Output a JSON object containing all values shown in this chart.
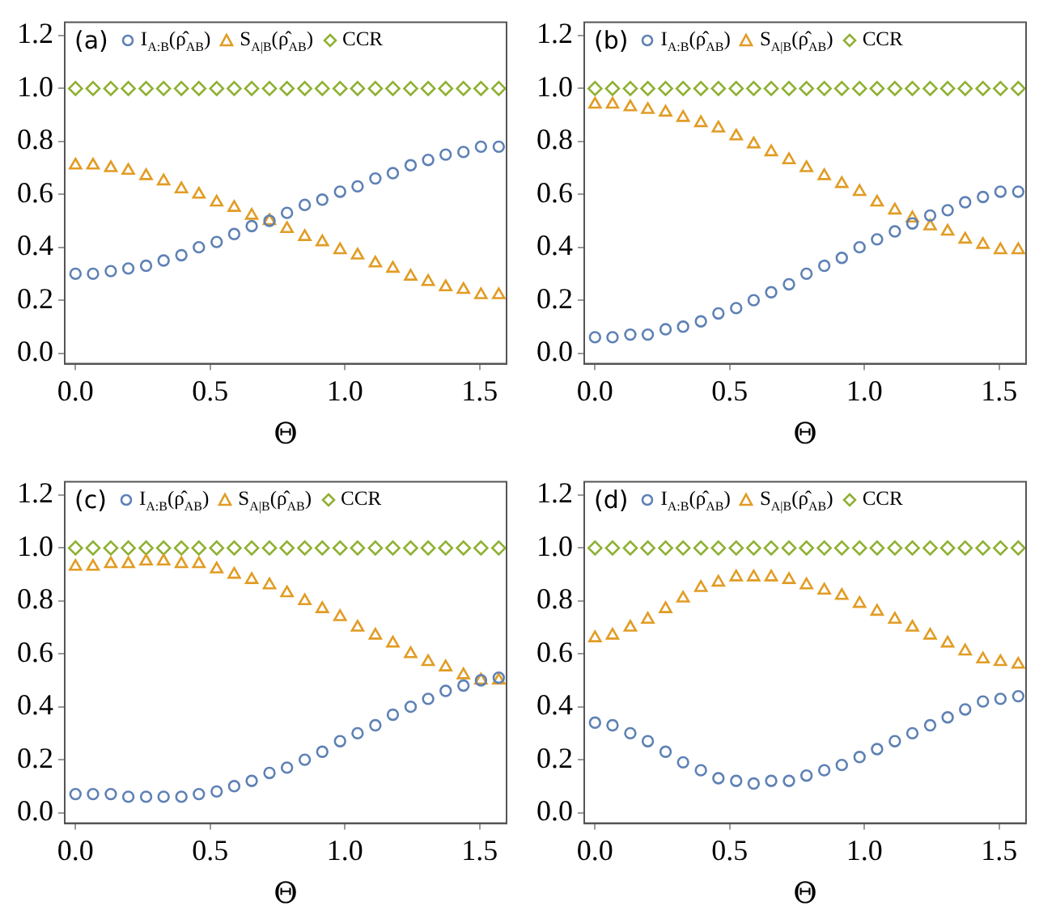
{
  "chart_data": [
    {
      "type": "scatter",
      "annotations": [
        "(a)"
      ],
      "xlabel": "Θ",
      "legend": "top",
      "grid": false,
      "x": [
        0,
        0.065,
        0.131,
        0.196,
        0.262,
        0.327,
        0.393,
        0.458,
        0.524,
        0.589,
        0.654,
        0.72,
        0.785,
        0.851,
        0.916,
        0.982,
        1.047,
        1.113,
        1.178,
        1.244,
        1.309,
        1.374,
        1.44,
        1.505,
        1.571
      ],
      "xlim": [
        -0.04,
        1.6
      ],
      "xticks": [
        {
          "value": 0,
          "label": "0.0"
        },
        {
          "value": 0.5,
          "label": "0.5"
        },
        {
          "value": 1,
          "label": "1.0"
        },
        {
          "value": 1.5,
          "label": "1.5"
        }
      ],
      "ylim": [
        -0.04,
        1.25
      ],
      "yticks": [
        {
          "value": 0,
          "label": "0.0"
        },
        {
          "value": 0.2,
          "label": "0.2"
        },
        {
          "value": 0.4,
          "label": "0.4"
        },
        {
          "value": 0.6,
          "label": "0.6"
        },
        {
          "value": 0.8,
          "label": "0.8"
        },
        {
          "value": 1,
          "label": "1.0"
        },
        {
          "value": 1.2,
          "label": "1.2"
        }
      ],
      "series": [
        {
          "name": "I$_{A:B}$(ρ̂$_{AB}$)",
          "color": "#5e81b5",
          "marker": "circle",
          "values": [
            0.3,
            0.3,
            0.31,
            0.32,
            0.33,
            0.35,
            0.37,
            0.4,
            0.42,
            0.45,
            0.48,
            0.5,
            0.53,
            0.56,
            0.58,
            0.61,
            0.63,
            0.66,
            0.68,
            0.71,
            0.73,
            0.75,
            0.76,
            0.78,
            0.78
          ]
        },
        {
          "name": "S$_{A|B}$(ρ̂$_{AB}$)",
          "color": "#e19c24",
          "marker": "triangle",
          "values": [
            0.71,
            0.71,
            0.7,
            0.69,
            0.67,
            0.65,
            0.62,
            0.6,
            0.57,
            0.55,
            0.52,
            0.5,
            0.47,
            0.44,
            0.42,
            0.39,
            0.37,
            0.34,
            0.32,
            0.29,
            0.27,
            0.25,
            0.24,
            0.22,
            0.22
          ]
        },
        {
          "name": "CCR",
          "color": "#8fb032",
          "marker": "diamond",
          "values": [
            1,
            1,
            1,
            1,
            1,
            1,
            1,
            1,
            1,
            1,
            1,
            1,
            1,
            1,
            1,
            1,
            1,
            1,
            1,
            1,
            1,
            1,
            1,
            1,
            1
          ]
        }
      ]
    },
    {
      "type": "scatter",
      "annotations": [
        "(b)"
      ],
      "xlabel": "Θ",
      "legend": "top",
      "grid": false,
      "x": [
        0,
        0.065,
        0.131,
        0.196,
        0.262,
        0.327,
        0.393,
        0.458,
        0.524,
        0.589,
        0.654,
        0.72,
        0.785,
        0.851,
        0.916,
        0.982,
        1.047,
        1.113,
        1.178,
        1.244,
        1.309,
        1.374,
        1.44,
        1.505,
        1.571
      ],
      "xlim": [
        -0.04,
        1.6
      ],
      "xticks": [
        {
          "value": 0,
          "label": "0.0"
        },
        {
          "value": 0.5,
          "label": "0.5"
        },
        {
          "value": 1,
          "label": "1.0"
        },
        {
          "value": 1.5,
          "label": "1.5"
        }
      ],
      "ylim": [
        -0.04,
        1.25
      ],
      "yticks": [
        {
          "value": 0,
          "label": "0.0"
        },
        {
          "value": 0.2,
          "label": "0.2"
        },
        {
          "value": 0.4,
          "label": "0.4"
        },
        {
          "value": 0.6,
          "label": "0.6"
        },
        {
          "value": 0.8,
          "label": "0.8"
        },
        {
          "value": 1,
          "label": "1.0"
        },
        {
          "value": 1.2,
          "label": "1.2"
        }
      ],
      "series": [
        {
          "name": "I$_{A:B}$(ρ̂$_{AB}$)",
          "color": "#5e81b5",
          "marker": "circle",
          "values": [
            0.06,
            0.06,
            0.07,
            0.07,
            0.09,
            0.1,
            0.12,
            0.15,
            0.17,
            0.2,
            0.23,
            0.26,
            0.3,
            0.33,
            0.36,
            0.4,
            0.43,
            0.46,
            0.49,
            0.52,
            0.54,
            0.57,
            0.59,
            0.61,
            0.61
          ]
        },
        {
          "name": "S$_{A|B}$(ρ̂$_{AB}$)",
          "color": "#e19c24",
          "marker": "triangle",
          "values": [
            0.94,
            0.94,
            0.93,
            0.92,
            0.91,
            0.89,
            0.87,
            0.85,
            0.82,
            0.79,
            0.76,
            0.73,
            0.7,
            0.67,
            0.64,
            0.61,
            0.57,
            0.54,
            0.51,
            0.48,
            0.46,
            0.43,
            0.41,
            0.39,
            0.39
          ]
        },
        {
          "name": "CCR",
          "color": "#8fb032",
          "marker": "diamond",
          "values": [
            1,
            1,
            1,
            1,
            1,
            1,
            1,
            1,
            1,
            1,
            1,
            1,
            1,
            1,
            1,
            1,
            1,
            1,
            1,
            1,
            1,
            1,
            1,
            1,
            1
          ]
        }
      ]
    },
    {
      "type": "scatter",
      "annotations": [
        "(c)"
      ],
      "xlabel": "Θ",
      "legend": "top",
      "grid": false,
      "x": [
        0,
        0.065,
        0.131,
        0.196,
        0.262,
        0.327,
        0.393,
        0.458,
        0.524,
        0.589,
        0.654,
        0.72,
        0.785,
        0.851,
        0.916,
        0.982,
        1.047,
        1.113,
        1.178,
        1.244,
        1.309,
        1.374,
        1.44,
        1.505,
        1.571
      ],
      "xlim": [
        -0.04,
        1.6
      ],
      "xticks": [
        {
          "value": 0,
          "label": "0.0"
        },
        {
          "value": 0.5,
          "label": "0.5"
        },
        {
          "value": 1,
          "label": "1.0"
        },
        {
          "value": 1.5,
          "label": "1.5"
        }
      ],
      "ylim": [
        -0.04,
        1.25
      ],
      "yticks": [
        {
          "value": 0,
          "label": "0.0"
        },
        {
          "value": 0.2,
          "label": "0.2"
        },
        {
          "value": 0.4,
          "label": "0.4"
        },
        {
          "value": 0.6,
          "label": "0.6"
        },
        {
          "value": 0.8,
          "label": "0.8"
        },
        {
          "value": 1,
          "label": "1.0"
        },
        {
          "value": 1.2,
          "label": "1.2"
        }
      ],
      "series": [
        {
          "name": "I$_{A:B}$(ρ̂$_{AB}$)",
          "color": "#5e81b5",
          "marker": "circle",
          "values": [
            0.07,
            0.07,
            0.07,
            0.06,
            0.06,
            0.06,
            0.06,
            0.07,
            0.08,
            0.1,
            0.12,
            0.15,
            0.17,
            0.2,
            0.23,
            0.27,
            0.3,
            0.33,
            0.37,
            0.4,
            0.43,
            0.46,
            0.48,
            0.5,
            0.51
          ]
        },
        {
          "name": "S$_{A|B}$(ρ̂$_{AB}$)",
          "color": "#e19c24",
          "marker": "triangle",
          "values": [
            0.93,
            0.93,
            0.94,
            0.94,
            0.95,
            0.95,
            0.94,
            0.94,
            0.92,
            0.9,
            0.88,
            0.86,
            0.83,
            0.8,
            0.77,
            0.74,
            0.7,
            0.67,
            0.64,
            0.6,
            0.57,
            0.55,
            0.52,
            0.5,
            0.5
          ]
        },
        {
          "name": "CCR",
          "color": "#8fb032",
          "marker": "diamond",
          "values": [
            1,
            1,
            1,
            1,
            1,
            1,
            1,
            1,
            1,
            1,
            1,
            1,
            1,
            1,
            1,
            1,
            1,
            1,
            1,
            1,
            1,
            1,
            1,
            1,
            1
          ]
        }
      ]
    },
    {
      "type": "scatter",
      "annotations": [
        "(d)"
      ],
      "xlabel": "Θ",
      "legend": "top",
      "grid": false,
      "x": [
        0,
        0.065,
        0.131,
        0.196,
        0.262,
        0.327,
        0.393,
        0.458,
        0.524,
        0.589,
        0.654,
        0.72,
        0.785,
        0.851,
        0.916,
        0.982,
        1.047,
        1.113,
        1.178,
        1.244,
        1.309,
        1.374,
        1.44,
        1.505,
        1.571
      ],
      "xlim": [
        -0.04,
        1.6
      ],
      "xticks": [
        {
          "value": 0,
          "label": "0.0"
        },
        {
          "value": 0.5,
          "label": "0.5"
        },
        {
          "value": 1,
          "label": "1.0"
        },
        {
          "value": 1.5,
          "label": "1.5"
        }
      ],
      "ylim": [
        -0.04,
        1.25
      ],
      "yticks": [
        {
          "value": 0,
          "label": "0.0"
        },
        {
          "value": 0.2,
          "label": "0.2"
        },
        {
          "value": 0.4,
          "label": "0.4"
        },
        {
          "value": 0.6,
          "label": "0.6"
        },
        {
          "value": 0.8,
          "label": "0.8"
        },
        {
          "value": 1,
          "label": "1.0"
        },
        {
          "value": 1.2,
          "label": "1.2"
        }
      ],
      "series": [
        {
          "name": "I$_{A:B}$(ρ̂$_{AB}$)",
          "color": "#5e81b5",
          "marker": "circle",
          "values": [
            0.34,
            0.33,
            0.3,
            0.27,
            0.23,
            0.19,
            0.16,
            0.13,
            0.12,
            0.11,
            0.12,
            0.12,
            0.14,
            0.16,
            0.18,
            0.21,
            0.24,
            0.27,
            0.3,
            0.33,
            0.36,
            0.39,
            0.42,
            0.43,
            0.44
          ]
        },
        {
          "name": "S$_{A|B}$(ρ̂$_{AB}$)",
          "color": "#e19c24",
          "marker": "triangle",
          "values": [
            0.66,
            0.67,
            0.7,
            0.73,
            0.77,
            0.81,
            0.85,
            0.87,
            0.89,
            0.89,
            0.89,
            0.88,
            0.86,
            0.84,
            0.82,
            0.79,
            0.76,
            0.73,
            0.7,
            0.67,
            0.64,
            0.61,
            0.58,
            0.57,
            0.56
          ]
        },
        {
          "name": "CCR",
          "color": "#8fb032",
          "marker": "diamond",
          "values": [
            1,
            1,
            1,
            1,
            1,
            1,
            1,
            1,
            1,
            1,
            1,
            1,
            1,
            1,
            1,
            1,
            1,
            1,
            1,
            1,
            1,
            1,
            1,
            1,
            1
          ]
        }
      ]
    }
  ]
}
